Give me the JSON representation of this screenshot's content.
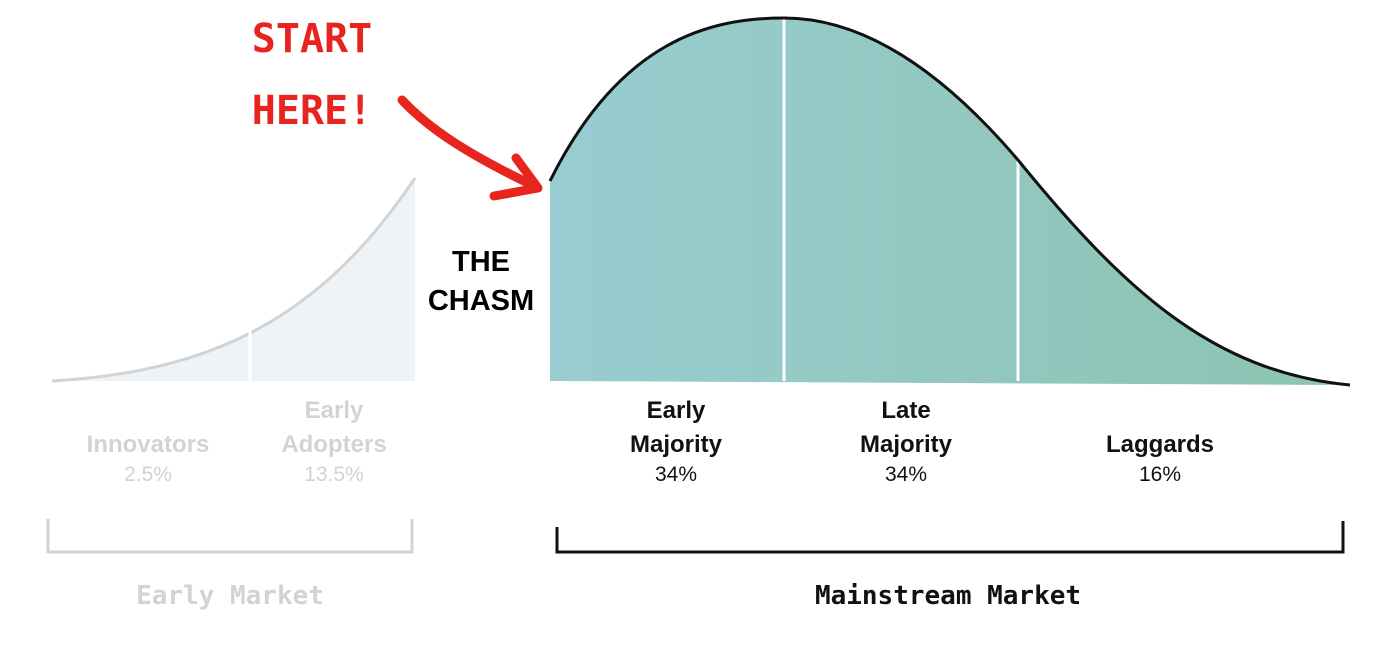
{
  "annotation": {
    "line1": "START",
    "line2": "HERE!",
    "color": "#e8241f"
  },
  "chasm": {
    "line1": "THE",
    "line2": "CHASM"
  },
  "segments": [
    {
      "id": "innovators",
      "label_lines": [
        "Innovators"
      ],
      "percent": "2.5%",
      "group": "early"
    },
    {
      "id": "early-adopters",
      "label_lines": [
        "Early",
        "Adopters"
      ],
      "percent": "13.5%",
      "group": "early"
    },
    {
      "id": "early-majority",
      "label_lines": [
        "Early",
        "Majority"
      ],
      "percent": "34%",
      "group": "mainstream"
    },
    {
      "id": "late-majority",
      "label_lines": [
        "Late",
        "Majority"
      ],
      "percent": "34%",
      "group": "mainstream"
    },
    {
      "id": "laggards",
      "label_lines": [
        "Laggards"
      ],
      "percent": "16%",
      "group": "mainstream"
    }
  ],
  "markets": {
    "early": "Early Market",
    "mainstream": "Mainstream Market"
  },
  "colors": {
    "early_fill": "#eef3f7",
    "early_line": "#d3d3d3",
    "mainstream_fill_start": "#98cdd1",
    "mainstream_fill_end": "#8cc3b0",
    "curve": "#111111",
    "divider": "#ffffff"
  },
  "icons": {
    "arrow": "red-curved-arrow-icon"
  }
}
